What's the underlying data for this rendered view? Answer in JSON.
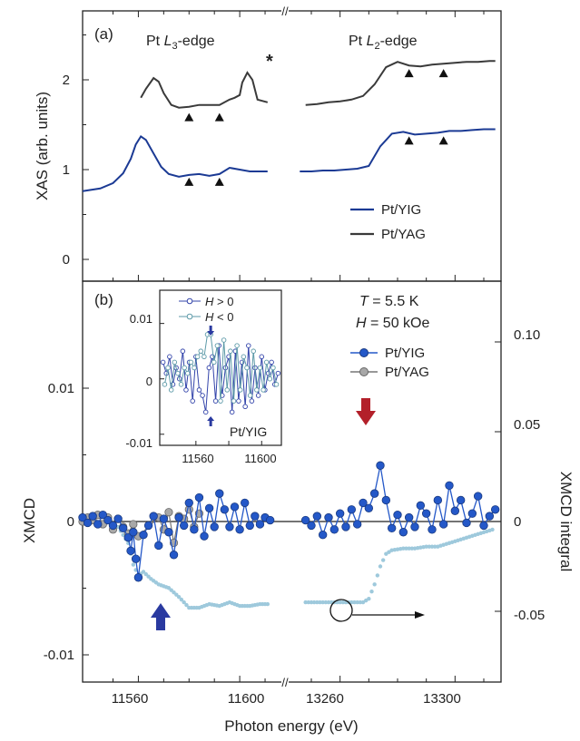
{
  "figure": {
    "x_label": "Photon energy (eV)",
    "x_ticks_left": [
      "11560",
      "11600"
    ],
    "x_ticks_right": [
      "13260",
      "13300"
    ],
    "axis_break": "//"
  },
  "colors": {
    "yig": "#1b3a94",
    "yag": "#3a3a3a",
    "xmcd_yig": "#2458c8",
    "xmcd_yag": "#a8a8a8",
    "integral": "#9ec9dc",
    "arrow_red": "#b3202a",
    "arrow_blue": "#2a3aa0"
  },
  "panel_a": {
    "label": "(a)",
    "y_label": "XAS (arb. units)",
    "y_ticks": [
      "0",
      "1",
      "2"
    ],
    "edge_l3": {
      "prefix": "Pt ",
      "italic": "L",
      "sub": "3",
      "suffix": "-edge"
    },
    "edge_l2": {
      "prefix": "Pt ",
      "italic": "L",
      "sub": "2",
      "suffix": "-edge"
    },
    "asterisk": "*",
    "legend": [
      "Pt/YIG",
      "Pt/YAG"
    ]
  },
  "panel_b": {
    "label": "(b)",
    "y_label": "XMCD",
    "y2_label": "XMCD integral",
    "y_ticks": [
      "0.01",
      "0",
      "-0.01"
    ],
    "y2_ticks": [
      "0.10",
      "0.05",
      "0",
      "-0.05"
    ],
    "t_label": "T",
    "t_value": " = 5.5 K",
    "h_label": "H",
    "h_value": " = 50 kOe",
    "legend": [
      "Pt/YIG",
      "Pt/YAG"
    ]
  },
  "inset": {
    "y_ticks": [
      "0.01",
      "0",
      "-0.01"
    ],
    "x_ticks": [
      "11560",
      "11600"
    ],
    "legend_h_pos": {
      "italic": "H",
      "rest": " > 0"
    },
    "legend_h_neg": {
      "italic": "H",
      "rest": " < 0"
    },
    "sample": "Pt/YIG"
  },
  "chart_data": [
    {
      "type": "line",
      "panel": "(a)",
      "xlabel": "Photon energy (eV)",
      "ylabel": "XAS (arb. units)",
      "ylim": [
        -0.2,
        2.75
      ],
      "xlim_left": [
        11538,
        11615
      ],
      "xlim_right": [
        13244,
        13316
      ],
      "series": [
        {
          "name": "Pt/YIG",
          "color": "#1b3a94",
          "left": {
            "x": [
              11538,
              11545,
              11550,
              11554,
              11557,
              11559,
              11561,
              11563,
              11566,
              11569,
              11572,
              11576,
              11580,
              11584,
              11588,
              11592,
              11596,
              11600,
              11604,
              11608,
              11611
            ],
            "y": [
              0.76,
              0.79,
              0.85,
              0.96,
              1.12,
              1.28,
              1.37,
              1.33,
              1.18,
              1.03,
              0.95,
              0.92,
              0.94,
              0.95,
              0.93,
              0.95,
              1.02,
              1.0,
              0.98,
              0.98,
              0.98
            ]
          },
          "right": {
            "x": [
              13246,
              13250,
              13254,
              13258,
              13262,
              13266,
              13270,
              13274,
              13278,
              13282,
              13286,
              13290,
              13294,
              13298,
              13302,
              13306,
              13310,
              13314
            ],
            "y": [
              0.98,
              0.98,
              0.99,
              0.99,
              1.0,
              1.01,
              1.04,
              1.26,
              1.4,
              1.42,
              1.39,
              1.4,
              1.41,
              1.43,
              1.43,
              1.44,
              1.45,
              1.45
            ]
          }
        },
        {
          "name": "Pt/YAG",
          "color": "#3a3a3a",
          "left": {
            "x": [
              11561,
              11563,
              11566,
              11568,
              11570,
              11573,
              11576,
              11580,
              11584,
              11588,
              11592,
              11596,
              11598,
              11600,
              11601,
              11603,
              11605,
              11607,
              11611
            ],
            "y": [
              1.8,
              1.9,
              2.02,
              1.98,
              1.85,
              1.72,
              1.69,
              1.7,
              1.72,
              1.72,
              1.72,
              1.78,
              1.8,
              1.83,
              1.97,
              2.08,
              2.0,
              1.78,
              1.75
            ]
          },
          "right": {
            "x": [
              13248,
              13252,
              13256,
              13260,
              13264,
              13268,
              13272,
              13276,
              13280,
              13284,
              13288,
              13292,
              13296,
              13300,
              13304,
              13308,
              13312,
              13314
            ],
            "y": [
              1.72,
              1.73,
              1.75,
              1.76,
              1.78,
              1.82,
              1.95,
              2.14,
              2.2,
              2.16,
              2.15,
              2.17,
              2.18,
              2.19,
              2.2,
              2.2,
              2.21,
              2.21
            ]
          }
        }
      ],
      "markers": {
        "type": "triangle",
        "x_left": [
          11580,
          11592
        ],
        "x_right": [
          13284,
          13296
        ]
      }
    },
    {
      "type": "line",
      "panel": "(b)",
      "xlabel": "Photon energy (eV)",
      "ylabel": "XMCD",
      "y2label": "XMCD integral",
      "ylim": [
        -0.012,
        0.0155
      ],
      "y2lim": [
        -0.12,
        0.155
      ],
      "series": [
        {
          "name": "Pt/YIG",
          "axis": "left",
          "color": "#2458c8",
          "left": {
            "x": [
              11538,
              11540,
              11542,
              11544,
              11546,
              11548,
              11550,
              11552,
              11554,
              11556,
              11557,
              11558,
              11559,
              11560,
              11562,
              11564,
              11566,
              11568,
              11570,
              11572,
              11574,
              11576,
              11578,
              11580,
              11582,
              11584,
              11586,
              11588,
              11590,
              11592,
              11594,
              11596,
              11598,
              11600,
              11602,
              11604,
              11606,
              11608,
              11610,
              11612
            ],
            "y": [
              0.0003,
              -0.0001,
              0.0004,
              -0.0002,
              0.0005,
              0.0001,
              -0.0003,
              0.0002,
              -0.0005,
              -0.0012,
              -0.0022,
              -0.0008,
              -0.0028,
              -0.0042,
              -0.001,
              -0.0003,
              0.0004,
              -0.0018,
              0.0002,
              -0.0008,
              -0.0025,
              0.0003,
              -0.0003,
              0.0014,
              -0.0006,
              0.0018,
              -0.0011,
              0.001,
              -0.0004,
              0.0021,
              0.0009,
              -0.0004,
              0.0011,
              -0.0006,
              0.0014,
              -0.0003,
              0.0004,
              -0.0002,
              0.0003,
              0.0001
            ]
          },
          "right": {
            "x": [
              13248,
              13250,
              13252,
              13254,
              13256,
              13258,
              13260,
              13262,
              13264,
              13266,
              13268,
              13270,
              13272,
              13274,
              13276,
              13278,
              13280,
              13282,
              13284,
              13286,
              13288,
              13290,
              13292,
              13294,
              13296,
              13298,
              13300,
              13302,
              13304,
              13306,
              13308,
              13310,
              13312,
              13314
            ],
            "y": [
              0.0001,
              -0.0003,
              0.0004,
              -0.001,
              0.0003,
              -0.0006,
              0.0006,
              -0.0004,
              0.0009,
              -0.0002,
              0.0014,
              0.001,
              0.0021,
              0.0042,
              0.0016,
              -0.0005,
              0.0005,
              -0.0008,
              0.0003,
              -0.0004,
              0.0012,
              0.0006,
              -0.0006,
              0.0016,
              -0.0002,
              0.0027,
              0.0008,
              0.0016,
              -0.0001,
              0.0006,
              0.0019,
              -0.0003,
              0.0004,
              0.0009
            ]
          }
        },
        {
          "name": "Pt/YAG",
          "axis": "left",
          "color": "#a8a8a8",
          "left": {
            "x": [
              11538,
              11540,
              11542,
              11544,
              11546,
              11548,
              11550,
              11552,
              11554,
              11556,
              11558,
              11560,
              11568,
              11570,
              11572,
              11574,
              11576,
              11578,
              11580,
              11582,
              11584
            ],
            "y": [
              0.0,
              0.0003,
              0.0001,
              0.0005,
              -0.0002,
              0.0003,
              -0.0006,
              0.0002,
              -0.0004,
              -0.0009,
              -0.0002,
              -0.0011,
              0.0003,
              -0.0006,
              0.0007,
              -0.0016,
              0.0004,
              0.0002,
              0.0009,
              -0.0004,
              0.0006
            ]
          }
        },
        {
          "name": "XMCD integral",
          "axis": "right",
          "color": "#9ec9dc",
          "left": {
            "x": [
              11552,
              11556,
              11558,
              11560,
              11562,
              11565,
              11568,
              11572,
              11576,
              11580,
              11584,
              11588,
              11592,
              11596,
              11600,
              11604,
              11608,
              11612
            ],
            "y": [
              -0.003,
              -0.012,
              -0.024,
              -0.03,
              -0.028,
              -0.032,
              -0.035,
              -0.037,
              -0.042,
              -0.048,
              -0.048,
              -0.046,
              -0.047,
              -0.045,
              -0.047,
              -0.047,
              -0.046,
              -0.046
            ]
          },
          "right": {
            "x": [
              13248,
              13252,
              13256,
              13260,
              13264,
              13268,
              13270,
              13272,
              13274,
              13276,
              13278,
              13282,
              13286,
              13290,
              13294,
              13298,
              13302,
              13306,
              13310,
              13314
            ],
            "y": [
              -0.045,
              -0.045,
              -0.045,
              -0.045,
              -0.045,
              -0.045,
              -0.043,
              -0.035,
              -0.025,
              -0.018,
              -0.016,
              -0.015,
              -0.015,
              -0.014,
              -0.014,
              -0.012,
              -0.01,
              -0.008,
              -0.006,
              -0.004
            ]
          }
        }
      ]
    },
    {
      "type": "line",
      "panel": "inset",
      "xlim": [
        11538,
        11612
      ],
      "ylim": [
        -0.012,
        0.016
      ],
      "series": [
        {
          "name": "H > 0",
          "color": "#3344aa",
          "x": [
            11540,
            11542,
            11544,
            11546,
            11548,
            11550,
            11552,
            11554,
            11556,
            11558,
            11560,
            11562,
            11564,
            11566,
            11568,
            11570,
            11572,
            11574,
            11576,
            11578,
            11580,
            11582,
            11584,
            11586,
            11588,
            11590,
            11592,
            11594,
            11596,
            11598,
            11600,
            11602,
            11604,
            11606,
            11608,
            11610
          ],
          "y": [
            0.003,
            0.001,
            0.004,
            -0.001,
            0.002,
            0.0,
            0.005,
            -0.002,
            0.003,
            -0.004,
            0.004,
            -0.002,
            -0.003,
            -0.006,
            0.002,
            0.004,
            -0.004,
            0.006,
            -0.003,
            0.002,
            0.004,
            -0.006,
            0.005,
            -0.004,
            0.003,
            -0.005,
            0.006,
            -0.004,
            0.002,
            -0.003,
            0.004,
            -0.002,
            0.001,
            0.003,
            -0.001,
            0.001
          ]
        },
        {
          "name": "H < 0",
          "color": "#5d9aa8",
          "x": [
            11541,
            11543,
            11545,
            11547,
            11549,
            11551,
            11553,
            11555,
            11557,
            11559,
            11561,
            11563,
            11565,
            11567,
            11569,
            11571,
            11573,
            11575,
            11577,
            11579,
            11581,
            11583,
            11585,
            11587,
            11589,
            11591,
            11593,
            11595,
            11597,
            11599,
            11601,
            11603,
            11605,
            11607,
            11609
          ],
          "y": [
            -0.001,
            0.002,
            -0.002,
            0.003,
            0.001,
            -0.001,
            0.002,
            0.001,
            0.003,
            0.002,
            0.004,
            0.005,
            0.004,
            0.008,
            0.008,
            0.003,
            0.006,
            -0.004,
            0.007,
            -0.002,
            0.005,
            -0.004,
            0.006,
            -0.002,
            0.004,
            0.002,
            -0.003,
            0.005,
            -0.002,
            0.002,
            -0.002,
            0.003,
            0.0,
            0.002,
            -0.001
          ]
        }
      ]
    }
  ]
}
